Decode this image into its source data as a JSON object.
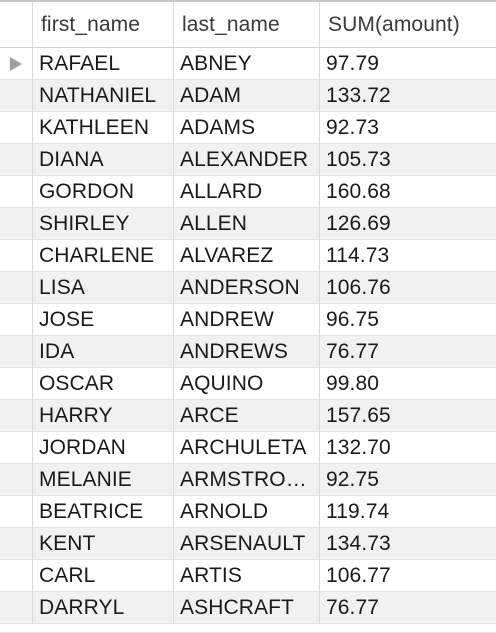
{
  "columns": {
    "first_name": "first_name",
    "last_name": "last_name",
    "sum_amount": "SUM(amount)"
  },
  "rows": [
    {
      "first_name": "RAFAEL",
      "last_name": "ABNEY",
      "sum_amount": "97.79"
    },
    {
      "first_name": "NATHANIEL",
      "last_name": "ADAM",
      "sum_amount": "133.72"
    },
    {
      "first_name": "KATHLEEN",
      "last_name": "ADAMS",
      "sum_amount": "92.73"
    },
    {
      "first_name": "DIANA",
      "last_name": "ALEXANDER",
      "sum_amount": "105.73"
    },
    {
      "first_name": "GORDON",
      "last_name": "ALLARD",
      "sum_amount": "160.68"
    },
    {
      "first_name": "SHIRLEY",
      "last_name": "ALLEN",
      "sum_amount": "126.69"
    },
    {
      "first_name": "CHARLENE",
      "last_name": "ALVAREZ",
      "sum_amount": "114.73"
    },
    {
      "first_name": "LISA",
      "last_name": "ANDERSON",
      "sum_amount": "106.76"
    },
    {
      "first_name": "JOSE",
      "last_name": "ANDREW",
      "sum_amount": "96.75"
    },
    {
      "first_name": "IDA",
      "last_name": "ANDREWS",
      "sum_amount": "76.77"
    },
    {
      "first_name": "OSCAR",
      "last_name": "AQUINO",
      "sum_amount": "99.80"
    },
    {
      "first_name": "HARRY",
      "last_name": "ARCE",
      "sum_amount": "157.65"
    },
    {
      "first_name": "JORDAN",
      "last_name": "ARCHULETA",
      "sum_amount": "132.70"
    },
    {
      "first_name": "MELANIE",
      "last_name": "ARMSTRO…",
      "sum_amount": "92.75"
    },
    {
      "first_name": "BEATRICE",
      "last_name": "ARNOLD",
      "sum_amount": "119.74"
    },
    {
      "first_name": "KENT",
      "last_name": "ARSENAULT",
      "sum_amount": "134.73"
    },
    {
      "first_name": "CARL",
      "last_name": "ARTIS",
      "sum_amount": "106.77"
    },
    {
      "first_name": "DARRYL",
      "last_name": "ASHCRAFT",
      "sum_amount": "76.77"
    }
  ],
  "selected_row_index": 0,
  "icons": {
    "row_pointer": "current-row-pointer-icon"
  }
}
